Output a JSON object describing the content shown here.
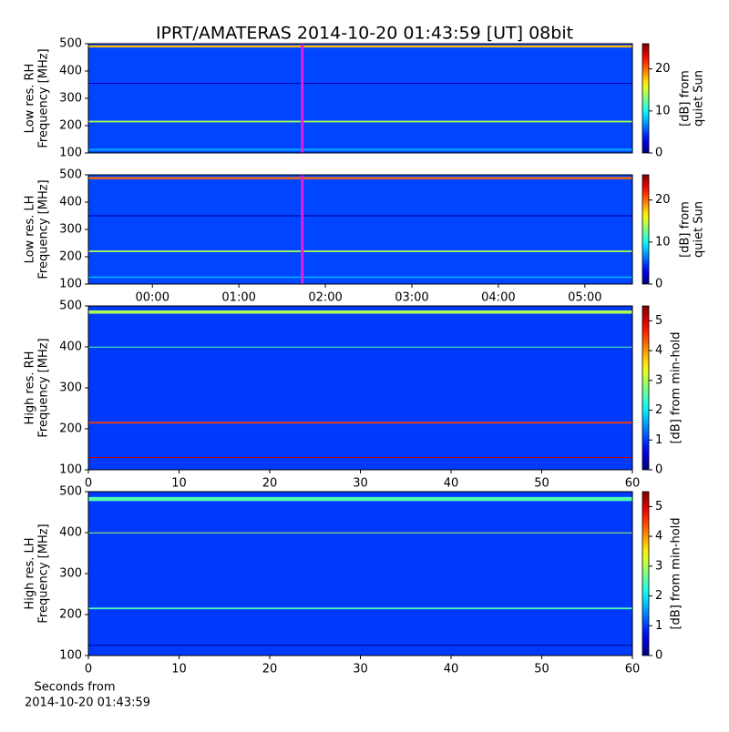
{
  "title": "IPRT/AMATERAS 2014-10-20 01:43:59 [UT]   08bit",
  "x_label": [
    "Seconds from",
    "2014-10-20 01:43:59"
  ],
  "chart_data": [
    {
      "type": "heatmap",
      "colormap": "jet",
      "y_label": [
        "Low res. RH",
        "Frequency [MHz]"
      ],
      "ylim": [
        100,
        500
      ],
      "yticks": [
        100,
        200,
        300,
        400,
        500
      ],
      "xlim": [
        -0.74,
        5.55
      ],
      "marker_x": 1.733,
      "marker_color": "#e020e0",
      "background_level": 5,
      "bands": [
        {
          "freq": 490,
          "level": 18,
          "width": 8
        },
        {
          "freq": 215,
          "level": 14,
          "width": 6
        },
        {
          "freq": 112,
          "level": 8,
          "width": 6
        },
        {
          "freq": 355,
          "level": 1,
          "width": 3
        }
      ],
      "colorbar": {
        "label": [
          "[dB] from",
          "quiet Sun"
        ],
        "lim": [
          0,
          26
        ],
        "ticks": [
          0,
          10,
          20
        ]
      }
    },
    {
      "type": "heatmap",
      "colormap": "jet",
      "y_label": [
        "Low res. LH",
        "Frequency [MHz]"
      ],
      "ylim": [
        100,
        500
      ],
      "yticks": [
        100,
        200,
        300,
        400,
        500
      ],
      "xlim": [
        -0.74,
        5.55
      ],
      "xticks": [
        {
          "value": 0,
          "label": "00:00"
        },
        {
          "value": 1,
          "label": "01:00"
        },
        {
          "value": 2,
          "label": "02:00"
        },
        {
          "value": 3,
          "label": "03:00"
        },
        {
          "value": 4,
          "label": "04:00"
        },
        {
          "value": 5,
          "label": "05:00"
        }
      ],
      "marker_x": 1.733,
      "marker_color": "#e020e0",
      "background_level": 5,
      "bands": [
        {
          "freq": 488,
          "level": 20,
          "width": 8
        },
        {
          "freq": 220,
          "level": 14,
          "width": 6
        },
        {
          "freq": 350,
          "level": 1,
          "width": 4
        },
        {
          "freq": 125,
          "level": 8,
          "width": 5
        }
      ],
      "colorbar": {
        "label": [
          "[dB] from",
          "quiet Sun"
        ],
        "lim": [
          0,
          26
        ],
        "ticks": [
          0,
          10,
          20
        ]
      }
    },
    {
      "type": "heatmap",
      "colormap": "jet",
      "y_label": [
        "High res. RH",
        "Frequency [MHz]"
      ],
      "ylim": [
        100,
        500
      ],
      "yticks": [
        100,
        200,
        300,
        400,
        500
      ],
      "xlim": [
        0,
        60
      ],
      "xticks": [
        0,
        10,
        20,
        30,
        40,
        50,
        60
      ],
      "background_level": 1,
      "bands": [
        {
          "freq": 485,
          "level": 3,
          "width": 8
        },
        {
          "freq": 215,
          "level": 4.5,
          "width": 4
        },
        {
          "freq": 130,
          "level": 5.2,
          "width": 2
        },
        {
          "freq": 400,
          "level": 2.5,
          "width": 1
        }
      ],
      "colorbar": {
        "label": [
          "[dB] from min-hold"
        ],
        "lim": [
          0,
          5.5
        ],
        "ticks": [
          0,
          1,
          2,
          3,
          4,
          5
        ]
      }
    },
    {
      "type": "heatmap",
      "colormap": "jet",
      "y_label": [
        "High res. LH",
        "Frequency [MHz]"
      ],
      "ylim": [
        100,
        500
      ],
      "yticks": [
        100,
        200,
        300,
        400,
        500
      ],
      "xlim": [
        0,
        60
      ],
      "xticks": [
        0,
        10,
        20,
        30,
        40,
        50,
        60
      ],
      "background_level": 1,
      "bands": [
        {
          "freq": 482,
          "level": 2.5,
          "width": 10
        },
        {
          "freq": 215,
          "level": 2.5,
          "width": 4
        },
        {
          "freq": 125,
          "level": 0,
          "width": 2
        },
        {
          "freq": 400,
          "level": 3,
          "width": 1
        }
      ],
      "colorbar": {
        "label": [
          "[dB] from min-hold"
        ],
        "lim": [
          0,
          5.5
        ],
        "ticks": [
          0,
          1,
          2,
          3,
          4,
          5
        ]
      }
    }
  ]
}
